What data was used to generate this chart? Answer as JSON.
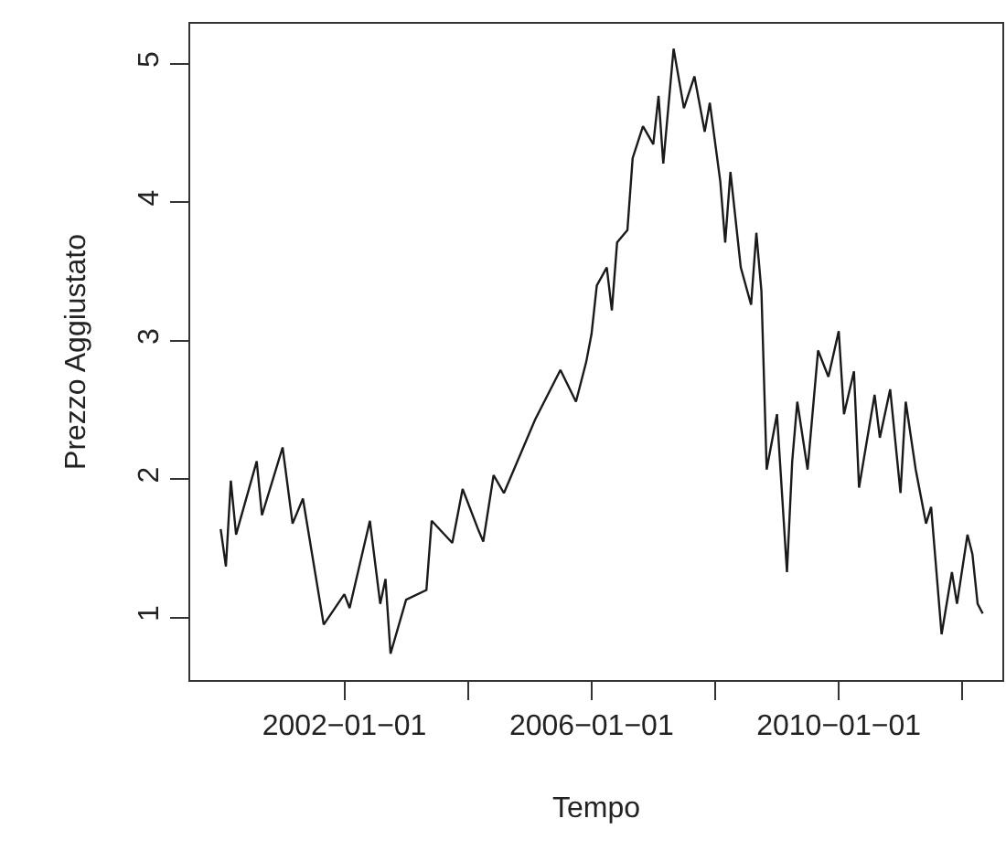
{
  "chart_data": {
    "type": "line",
    "xlabel": "Tempo",
    "ylabel": "Prezzo Aggiustato",
    "color": "#1a1a1a",
    "marker": "none",
    "line_style": "solid",
    "x": [
      "2000-01",
      "2000-02",
      "2000-03",
      "2000-04",
      "2000-08",
      "2000-09",
      "2001-01",
      "2001-03",
      "2001-05",
      "2001-09",
      "2002-01",
      "2002-02",
      "2002-06",
      "2002-08",
      "2002-09",
      "2002-10",
      "2003-01",
      "2003-05",
      "2003-06",
      "2003-10",
      "2003-12",
      "2004-03",
      "2004-04",
      "2004-06",
      "2004-08",
      "2005-02",
      "2005-07",
      "2005-10",
      "2005-12",
      "2006-01",
      "2006-02",
      "2006-04",
      "2006-05",
      "2006-06",
      "2006-08",
      "2006-09",
      "2006-11",
      "2007-01",
      "2007-02",
      "2007-03",
      "2007-05",
      "2007-07",
      "2007-09",
      "2007-11",
      "2007-12",
      "2008-02",
      "2008-03",
      "2008-04",
      "2008-06",
      "2008-08",
      "2008-09",
      "2008-10",
      "2008-11",
      "2009-01",
      "2009-03",
      "2009-04",
      "2009-05",
      "2009-07",
      "2009-09",
      "2009-11",
      "2010-01",
      "2010-02",
      "2010-04",
      "2010-05",
      "2010-08",
      "2010-09",
      "2010-11",
      "2011-01",
      "2011-02",
      "2011-04",
      "2011-06",
      "2011-07",
      "2011-09",
      "2011-11",
      "2011-12",
      "2012-02",
      "2012-03",
      "2012-04",
      "2012-05"
    ],
    "values": [
      1.64,
      1.37,
      1.99,
      1.6,
      2.13,
      1.74,
      2.23,
      1.68,
      1.86,
      0.95,
      1.17,
      1.07,
      1.7,
      1.1,
      1.28,
      0.74,
      1.13,
      1.2,
      1.7,
      1.54,
      1.93,
      1.64,
      1.55,
      2.03,
      1.9,
      2.43,
      2.79,
      2.56,
      2.85,
      3.05,
      3.4,
      3.53,
      3.22,
      3.71,
      3.8,
      4.32,
      4.55,
      4.42,
      4.77,
      4.28,
      5.11,
      4.68,
      4.91,
      4.51,
      4.72,
      4.15,
      3.71,
      4.22,
      3.53,
      3.26,
      3.78,
      3.36,
      2.07,
      2.47,
      1.33,
      2.13,
      2.56,
      2.07,
      2.93,
      2.74,
      3.07,
      2.47,
      2.78,
      1.94,
      2.61,
      2.3,
      2.65,
      1.9,
      2.56,
      2.07,
      1.68,
      1.8,
      0.88,
      1.33,
      1.1,
      1.6,
      1.46,
      1.1,
      1.03
    ],
    "xlim": [
      "1999-07-05",
      "2012-08-25"
    ],
    "xticks": [
      {
        "value": "2002-01-01",
        "label": "2002−01−01"
      },
      {
        "value": "2004-01-01",
        "label": null
      },
      {
        "value": "2006-01-01",
        "label": "2006−01−01"
      },
      {
        "value": "2008-01-01",
        "label": null
      },
      {
        "value": "2010-01-01",
        "label": "2010−01−01"
      },
      {
        "value": "2012-01-01",
        "label": null
      }
    ],
    "ylim": [
      0.55,
      5.29
    ],
    "yticks": [
      1,
      2,
      3,
      4,
      5
    ]
  }
}
